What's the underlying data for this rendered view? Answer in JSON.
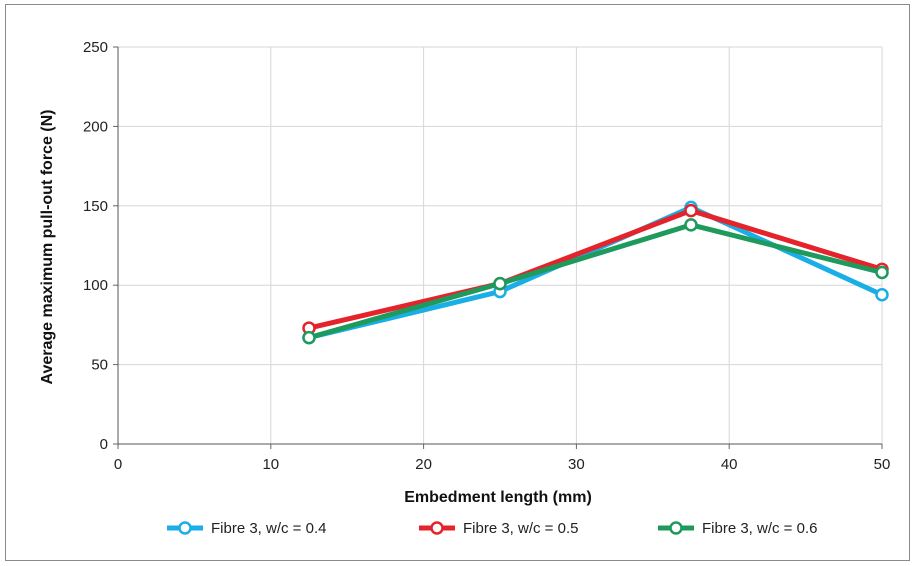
{
  "chart_data": {
    "type": "line",
    "xlabel": "Embedment length (mm)",
    "ylabel": "Average maximum pull-out force (N)",
    "xlim": [
      0,
      50
    ],
    "ylim": [
      0,
      250
    ],
    "x_ticks": [
      0,
      10,
      20,
      30,
      40,
      50
    ],
    "y_ticks": [
      0,
      50,
      100,
      150,
      200,
      250
    ],
    "grid": true,
    "legend_position": "bottom",
    "series": [
      {
        "name": "Fibre 3, w/c = 0.4",
        "color": "#1aaee6",
        "x": [
          12.5,
          25,
          37.5,
          50
        ],
        "y": [
          67,
          96,
          149,
          94
        ]
      },
      {
        "name": "Fibre 3, w/c = 0.5",
        "color": "#e5232b",
        "x": [
          12.5,
          25,
          37.5,
          50
        ],
        "y": [
          73,
          101,
          147,
          110
        ]
      },
      {
        "name": "Fibre 3, w/c = 0.6",
        "color": "#1d9a5c",
        "x": [
          12.5,
          25,
          37.5,
          50
        ],
        "y": [
          67,
          101,
          138,
          108
        ]
      }
    ]
  }
}
